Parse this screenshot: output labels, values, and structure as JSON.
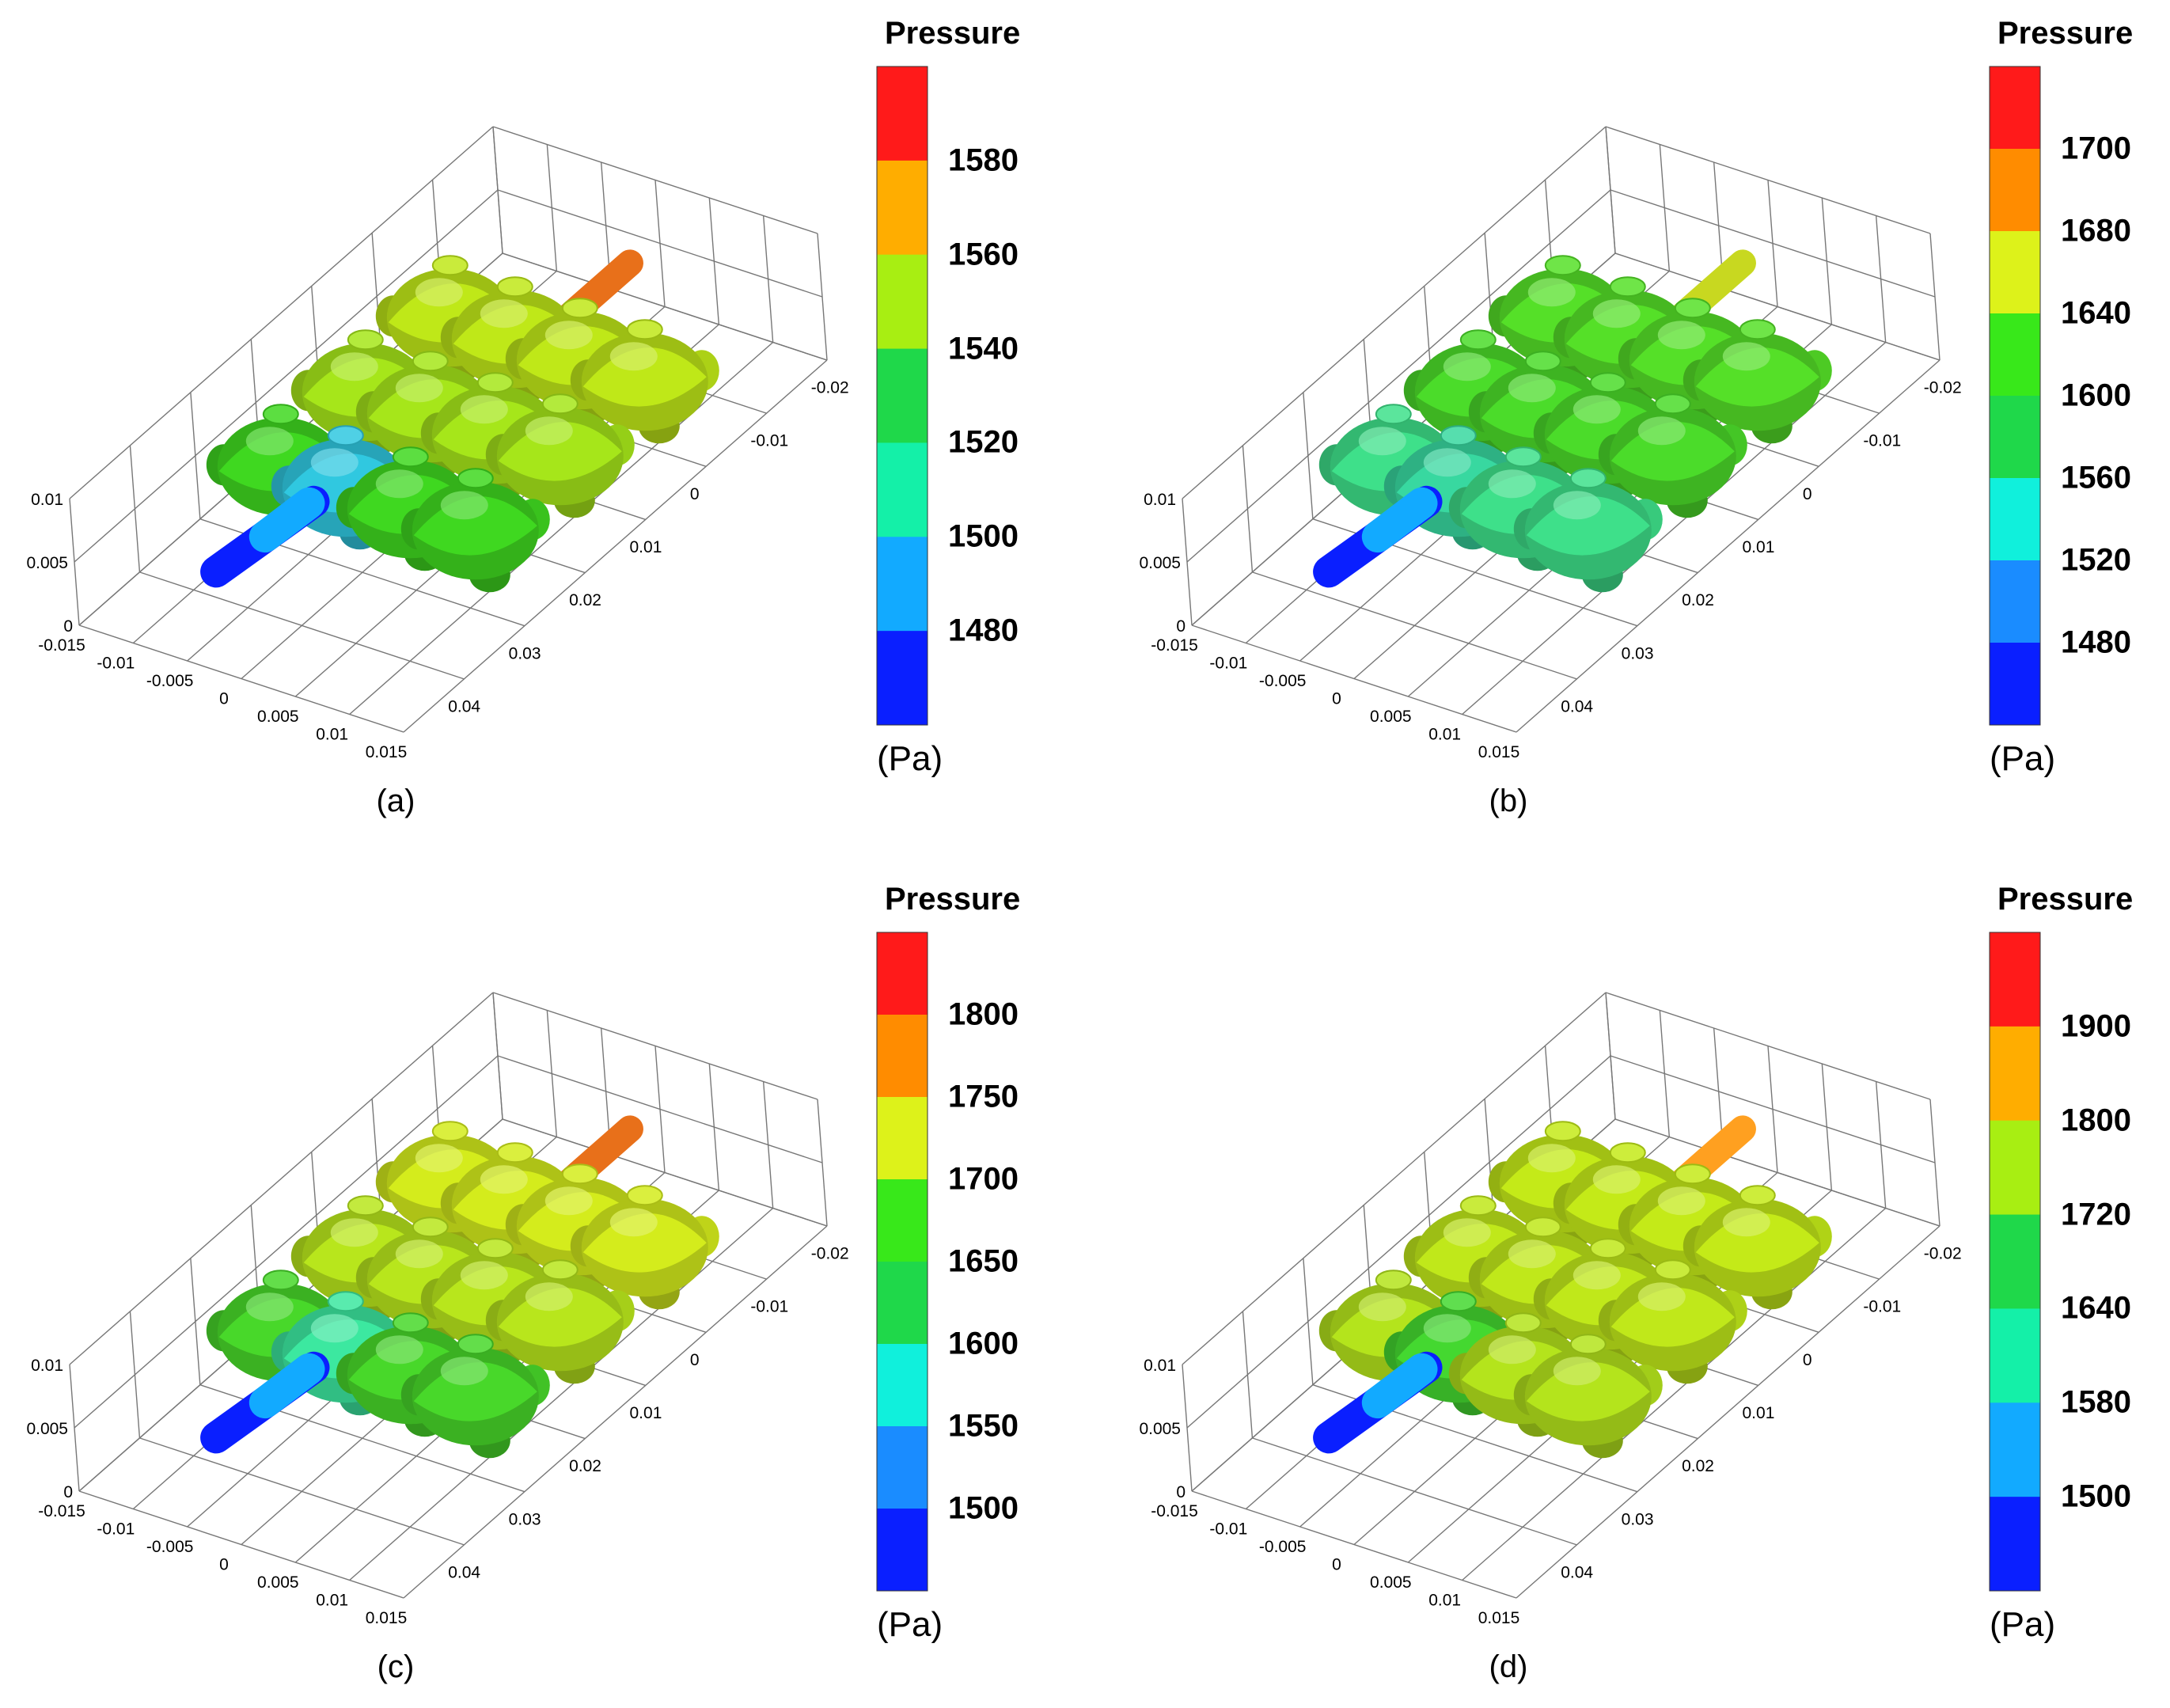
{
  "colors": {
    "red": "#ff1a1a",
    "orange": "#ff8c00",
    "amber": "#ffad00",
    "yellow": "#ddf21a",
    "yellowgreen": "#a8ee12",
    "green": "#38e81a",
    "green2": "#1fd84a",
    "aqua": "#14f0a8",
    "cyan": "#10f0dc",
    "skyblue": "#12aaff",
    "blue": "#1a6dff",
    "navy": "#0a1fff"
  },
  "axis_ticks": {
    "x": [
      "-0.015",
      "-0.01",
      "-0.005",
      "0",
      "0.005",
      "0.01",
      "0.015"
    ],
    "y": [
      "-0.02",
      "-0.01",
      "0",
      "0.01",
      "0.02",
      "0.03",
      "0.04"
    ],
    "z": [
      "0.01",
      "0.005",
      "0"
    ]
  },
  "panels": [
    {
      "caption": "(a)",
      "colorbar": {
        "title": "Pressure",
        "unit": "(Pa)",
        "ticks": [
          "1580",
          "1560",
          "1540",
          "1520",
          "1500",
          "1480"
        ],
        "band_colors": [
          "#ff1a1a",
          "#ffad00",
          "#a8ee12",
          "#1fd84a",
          "#14f0a8",
          "#12aaff",
          "#0a1fff"
        ]
      },
      "field": {
        "back_row": "#bfe818",
        "mid_row": "#a6e61a",
        "front_row": "#3fd820",
        "inlet_pipe": "#0a1fff",
        "outlet_pipe": "#e8701a",
        "inlet_node": "#30c8e0"
      }
    },
    {
      "caption": "(b)",
      "colorbar": {
        "title": "Pressure",
        "unit": "(Pa)",
        "ticks": [
          "1700",
          "1680",
          "1640",
          "1600",
          "1560",
          "1520",
          "1480"
        ],
        "band_colors": [
          "#ff1a1a",
          "#ff8c00",
          "#ddf21a",
          "#38e81a",
          "#1fd84a",
          "#10f0dc",
          "#1a8cff",
          "#0a1fff"
        ]
      },
      "field": {
        "back_row": "#55e028",
        "mid_row": "#4bdc2a",
        "front_row": "#3ee08a",
        "inlet_pipe": "#0a1fff",
        "outlet_pipe": "#c8d820",
        "inlet_node": "#38d8a0"
      }
    },
    {
      "caption": "(c)",
      "colorbar": {
        "title": "Pressure",
        "unit": "(Pa)",
        "ticks": [
          "1800",
          "1750",
          "1700",
          "1650",
          "1600",
          "1550",
          "1500"
        ],
        "band_colors": [
          "#ff1a1a",
          "#ff8c00",
          "#ddf21a",
          "#38e81a",
          "#1fd84a",
          "#10f0dc",
          "#1a8cff",
          "#0a1fff"
        ]
      },
      "field": {
        "back_row": "#d4ec1c",
        "mid_row": "#b8e61c",
        "front_row": "#48d82a",
        "inlet_pipe": "#0a1fff",
        "outlet_pipe": "#e8701a",
        "inlet_node": "#3ce8a0"
      }
    },
    {
      "caption": "(d)",
      "colorbar": {
        "title": "Pressure",
        "unit": "(Pa)",
        "ticks": [
          "1900",
          "1800",
          "1720",
          "1640",
          "1580",
          "1500"
        ],
        "band_colors": [
          "#ff1a1a",
          "#ffad00",
          "#a8ee12",
          "#1fd84a",
          "#14f0a8",
          "#12aaff",
          "#0a1fff"
        ]
      },
      "field": {
        "back_row": "#c4ea18",
        "mid_row": "#c0e81a",
        "front_row": "#b4e41c",
        "inlet_pipe": "#0a1fff",
        "outlet_pipe": "#ffa020",
        "inlet_node": "#44d830"
      }
    }
  ]
}
